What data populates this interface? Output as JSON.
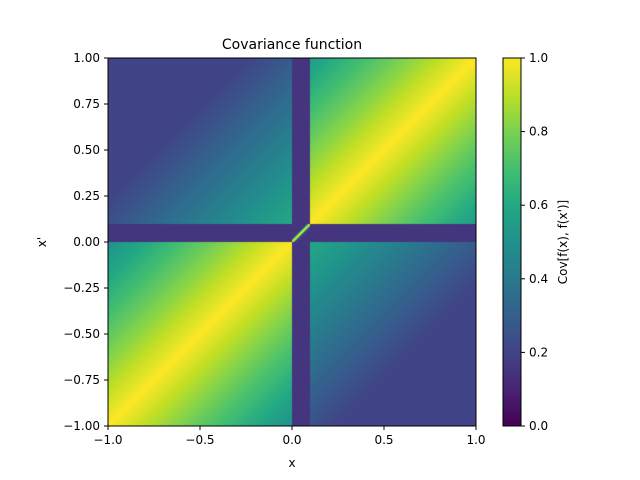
{
  "chart_data": {
    "type": "heatmap",
    "title": "Covariance function",
    "xlabel": "x",
    "ylabel": "x'",
    "xlim": [
      -1.0,
      1.0
    ],
    "ylim": [
      -1.0,
      1.0
    ],
    "xticks": [
      -1.0,
      -0.5,
      0.0,
      0.5,
      1.0
    ],
    "xtick_labels": [
      "−1.0",
      "−0.5",
      "0.0",
      "0.5",
      "1.0"
    ],
    "yticks": [
      1.0,
      0.75,
      0.5,
      0.25,
      0.0,
      -0.25,
      -0.5,
      -0.75,
      -1.0
    ],
    "ytick_labels": [
      "1.00",
      "0.75",
      "0.50",
      "0.25",
      "0.00",
      "−0.25",
      "−0.50",
      "−0.75",
      "−1.00"
    ],
    "colormap": "viridis",
    "colorbar": {
      "label": "Cov[f(x), f(x')]",
      "range": [
        0.0,
        1.0
      ],
      "ticks": [
        0.0,
        0.2,
        0.4,
        0.6,
        0.8,
        1.0
      ],
      "tick_labels": [
        "0.0",
        "0.2",
        "0.4",
        "0.6",
        "0.8",
        "1.0"
      ]
    },
    "grid": false,
    "regions": [
      {
        "x": [
          -1.0,
          0.0
        ],
        "y": [
          0.1,
          1.0
        ],
        "value_range": [
          0.2,
          0.6
        ]
      },
      {
        "x": [
          0.1,
          1.0
        ],
        "y": [
          0.1,
          1.0
        ],
        "value_range": [
          0.5,
          1.0
        ]
      },
      {
        "x": [
          -1.0,
          0.0
        ],
        "y": [
          -1.0,
          0.0
        ],
        "value_range": [
          0.5,
          1.0
        ]
      },
      {
        "x": [
          0.1,
          1.0
        ],
        "y": [
          -1.0,
          0.0
        ],
        "value_range": [
          0.2,
          0.6
        ]
      },
      {
        "x": [
          0.0,
          0.1
        ],
        "y": [
          -1.0,
          1.0
        ],
        "value": 0.15
      },
      {
        "x": [
          -1.0,
          1.0
        ],
        "y": [
          0.0,
          0.1
        ],
        "value": 0.15
      },
      {
        "x": [
          0.0,
          0.1
        ],
        "y": [
          0.0,
          0.1
        ],
        "diagonal_value": 1.0,
        "off_diagonal_value": 0.15
      }
    ]
  }
}
